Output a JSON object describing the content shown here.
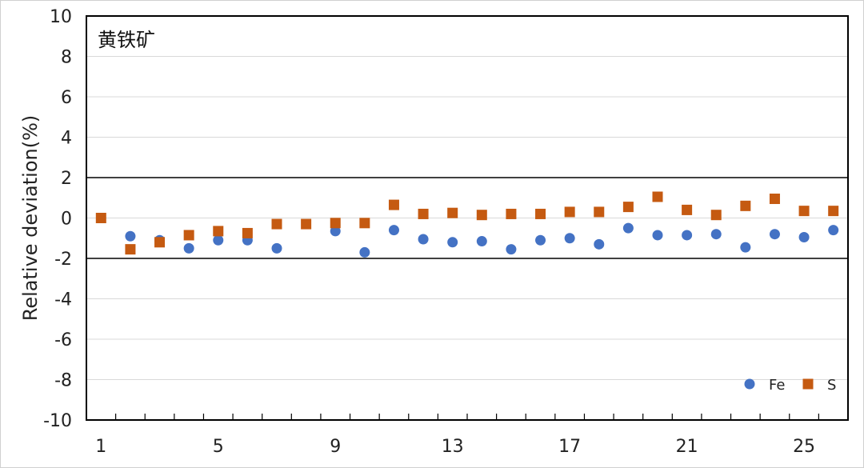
{
  "chart_data": {
    "type": "scatter",
    "annotation": "黄铁矿",
    "xlabel": "",
    "ylabel": "Relative deviation(%)",
    "xlim": [
      0.5,
      26.5
    ],
    "ylim": [
      -10,
      10
    ],
    "x_tick_labels": [
      "1",
      "5",
      "9",
      "13",
      "17",
      "21",
      "25"
    ],
    "y_tick_labels": [
      "10",
      "8",
      "6",
      "4",
      "2",
      "0",
      "-2",
      "-4",
      "-6",
      "-8",
      "-10"
    ],
    "reference_lines": [
      2,
      -2
    ],
    "grid": true,
    "legend_position": "bottom-right",
    "series": [
      {
        "name": "Fe",
        "marker": "circle",
        "color": "#4472C4",
        "x": [
          2,
          3,
          4,
          5,
          6,
          7,
          9,
          10,
          11,
          12,
          13,
          14,
          15,
          16,
          17,
          18,
          19,
          20,
          21,
          22,
          23,
          24,
          25,
          26
        ],
        "y": [
          -0.9,
          -1.1,
          -1.5,
          -1.1,
          -1.1,
          -1.5,
          -0.65,
          -1.7,
          -0.6,
          -1.05,
          -1.2,
          -1.15,
          -1.55,
          -1.1,
          -1.0,
          -1.3,
          -0.5,
          -0.85,
          -0.85,
          -0.8,
          -1.45,
          -0.8,
          -0.95,
          -0.6
        ]
      },
      {
        "name": "S",
        "marker": "square",
        "color": "#C55A11",
        "x": [
          1,
          2,
          3,
          4,
          5,
          6,
          7,
          8,
          9,
          10,
          11,
          12,
          13,
          14,
          15,
          16,
          17,
          18,
          19,
          20,
          21,
          22,
          23,
          24,
          25,
          26
        ],
        "y": [
          0.0,
          -1.55,
          -1.2,
          -0.85,
          -0.65,
          -0.75,
          -0.3,
          -0.3,
          -0.25,
          -0.25,
          0.65,
          0.2,
          0.25,
          0.15,
          0.2,
          0.2,
          0.3,
          0.3,
          0.55,
          1.05,
          0.4,
          0.15,
          0.6,
          0.95,
          0.35,
          0.35
        ]
      }
    ]
  }
}
